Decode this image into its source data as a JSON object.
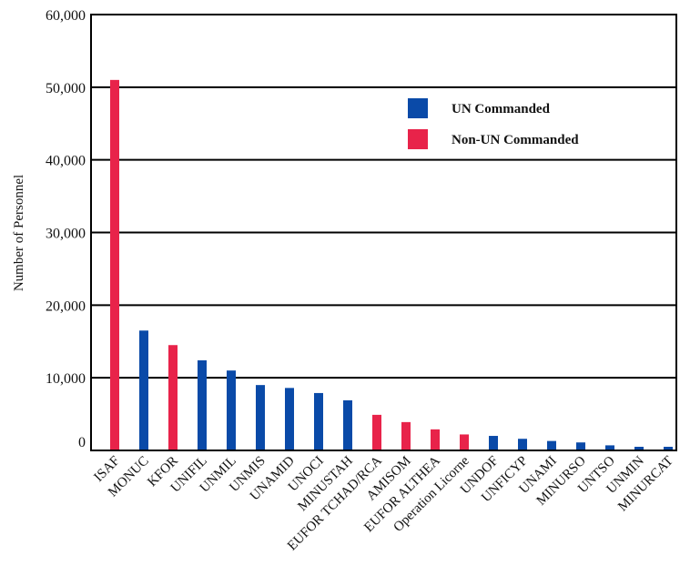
{
  "chart_data": {
    "type": "bar",
    "ylabel": "Number of Personnel",
    "ylim": [
      0,
      60000
    ],
    "yticks": [
      "0",
      "10,000",
      "20,000",
      "30,000",
      "40,000",
      "50,000",
      "60,000"
    ],
    "yticks_values": [
      0,
      10000,
      20000,
      30000,
      40000,
      50000,
      60000
    ],
    "grid": true,
    "legend_position": "top-right",
    "categories": [
      "ISAF",
      "MONUC",
      "KFOR",
      "UNIFIL",
      "UNMIL",
      "UNMIS",
      "UNAMID",
      "UNOCI",
      "MINUSTAH",
      "EUFOR TCHAD/RCA",
      "AMISOM",
      "EUFOR ALTHEA",
      "Operation Licorne",
      "UNDOF",
      "UNFICYP",
      "UNAMI",
      "MINURSO",
      "UNTSO",
      "UNMIN",
      "MINURCAT"
    ],
    "values": [
      51000,
      16500,
      14500,
      12400,
      11000,
      9000,
      8600,
      7900,
      6900,
      4900,
      3900,
      2900,
      2200,
      2000,
      1600,
      1300,
      1100,
      700,
      500,
      500
    ],
    "groups": [
      "Non-UN Commanded",
      "UN Commanded",
      "Non-UN Commanded",
      "UN Commanded",
      "UN Commanded",
      "UN Commanded",
      "UN Commanded",
      "UN Commanded",
      "UN Commanded",
      "Non-UN Commanded",
      "Non-UN Commanded",
      "Non-UN Commanded",
      "Non-UN Commanded",
      "UN Commanded",
      "UN Commanded",
      "UN Commanded",
      "UN Commanded",
      "UN Commanded",
      "UN Commanded",
      "UN Commanded"
    ],
    "legend": [
      {
        "name": "UN Commanded",
        "color": "#0a4aa8"
      },
      {
        "name": "Non-UN Commanded",
        "color": "#e8234a"
      }
    ]
  }
}
